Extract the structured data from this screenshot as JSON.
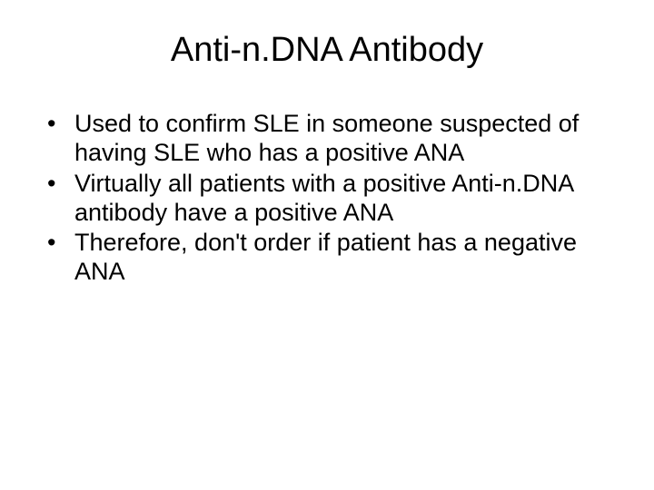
{
  "slide": {
    "title": "Anti-n.DNA Antibody",
    "bullets": [
      "Used to confirm SLE in someone suspected of having SLE who has a positive ANA",
      "Virtually all patients with a positive Anti-n.DNA antibody have a positive ANA",
      "Therefore, don't order if patient has a negative ANA"
    ],
    "text_color": "#000000",
    "background_color": "#ffffff",
    "title_fontsize": 38,
    "body_fontsize": 27
  }
}
